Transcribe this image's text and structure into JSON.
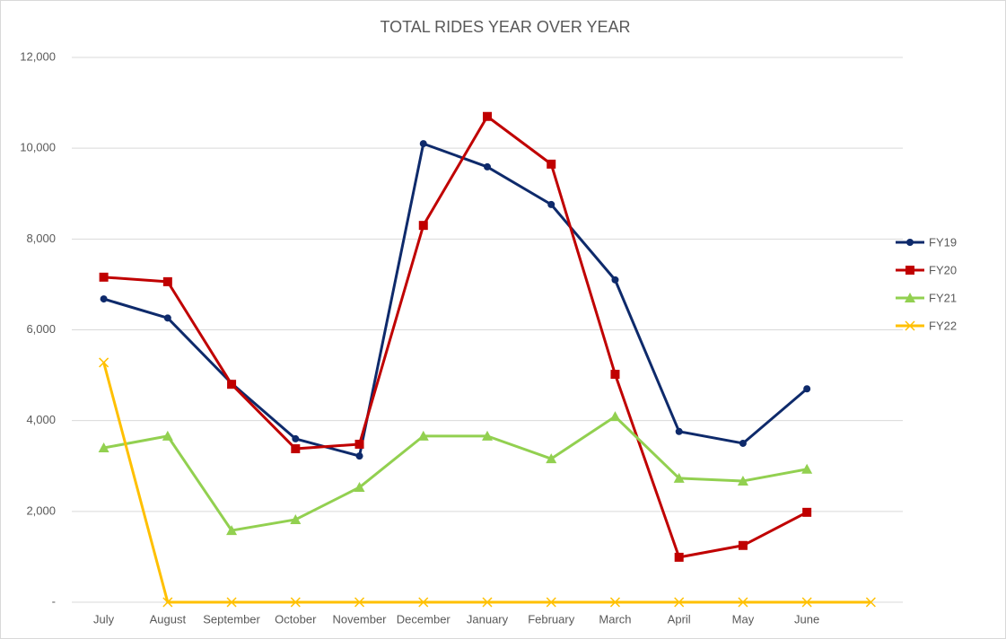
{
  "chart_data": {
    "type": "line",
    "title": "TOTAL RIDES YEAR OVER YEAR",
    "categories": [
      "July",
      "August",
      "September",
      "October",
      "November",
      "December",
      "January",
      "February",
      "March",
      "April",
      "May",
      "June",
      null
    ],
    "series": [
      {
        "name": "FY19",
        "color": "#0e2a6b",
        "marker": "circle",
        "values": [
          6680,
          6260,
          4820,
          3600,
          3220,
          10100,
          9590,
          8760,
          7100,
          3760,
          3500,
          4700,
          null
        ]
      },
      {
        "name": "FY20",
        "color": "#c00000",
        "marker": "square",
        "values": [
          7160,
          7060,
          4800,
          3380,
          3480,
          8300,
          10700,
          9650,
          5020,
          990,
          1250,
          1980,
          null
        ]
      },
      {
        "name": "FY21",
        "color": "#92d050",
        "marker": "triangle",
        "values": [
          3400,
          3660,
          1580,
          1820,
          2530,
          3660,
          3660,
          3160,
          4090,
          2730,
          2670,
          2930,
          null
        ]
      },
      {
        "name": "FY22",
        "color": "#ffc000",
        "marker": "x",
        "values": [
          5280,
          0,
          0,
          0,
          0,
          0,
          0,
          0,
          0,
          0,
          0,
          0,
          0
        ]
      }
    ],
    "ylim": [
      0,
      12000
    ],
    "yticks": [
      {
        "value": 0,
        "label": "-"
      },
      {
        "value": 2000,
        "label": "2,000"
      },
      {
        "value": 4000,
        "label": "4,000"
      },
      {
        "value": 6000,
        "label": "6,000"
      },
      {
        "value": 8000,
        "label": "8,000"
      },
      {
        "value": 10000,
        "label": "10,000"
      },
      {
        "value": 12000,
        "label": "12,000"
      }
    ],
    "grid": true,
    "legend": "right"
  }
}
